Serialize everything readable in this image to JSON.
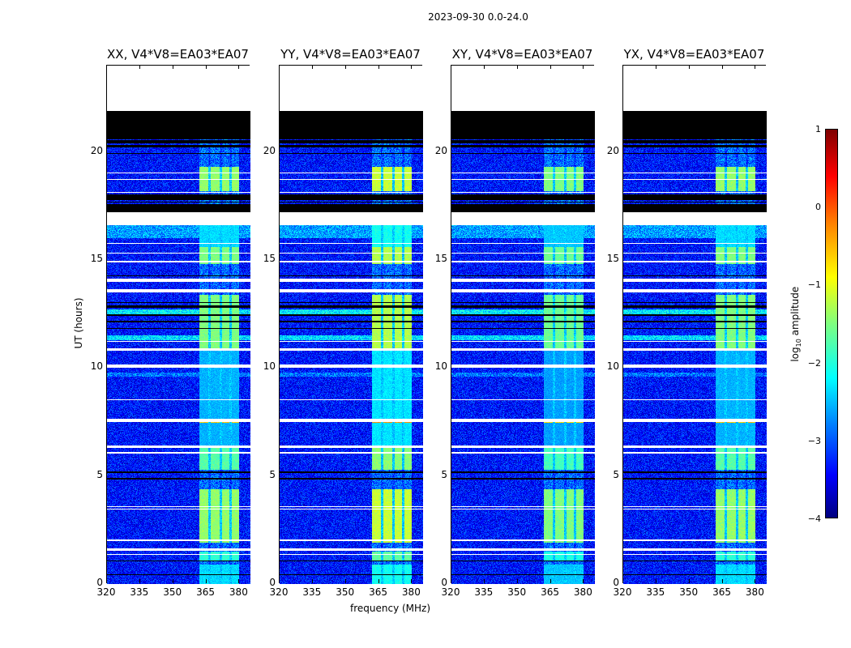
{
  "chart_data": {
    "type": "heatmap",
    "suptitle": "2023-09-30 0.0-24.0",
    "xlabel": "frequency (MHz)",
    "ylabel": "UT (hours)",
    "xlim": [
      320,
      385
    ],
    "ylim": [
      0,
      24
    ],
    "xticks": [
      "320",
      "335",
      "350",
      "365",
      "380"
    ],
    "xtick_values": [
      320,
      335,
      350,
      365,
      380
    ],
    "yticks": [
      "0",
      "5",
      "10",
      "15",
      "20"
    ],
    "ytick_values": [
      0,
      5,
      10,
      15,
      20
    ],
    "panels": [
      {
        "title": "XX, V4*V8=EA03*EA07",
        "gain": 0
      },
      {
        "title": "YY, V4*V8=EA03*EA07",
        "gain": 0.25
      },
      {
        "title": "XY, V4*V8=EA03*EA07",
        "gain": -0.1
      },
      {
        "title": "YX, V4*V8=EA03*EA07",
        "gain": 0
      }
    ],
    "colorbar": {
      "label_main": "log",
      "label_sub": "10",
      "label_rest": " amplitude",
      "range": [
        -4,
        1
      ],
      "ticks": [
        "1",
        "0",
        "−1",
        "−2",
        "−3",
        "−4"
      ],
      "tick_values": [
        1,
        0,
        -1,
        -2,
        -3,
        -4
      ],
      "colormap": "jet"
    },
    "background_level": -3.3,
    "no_data_hours": [
      [
        21.9,
        24
      ]
    ],
    "flagged_black_hours": [
      [
        20.6,
        21.9
      ],
      [
        17.2,
        17.6
      ],
      [
        17.8,
        18.0
      ],
      [
        20.2,
        20.3
      ],
      [
        19.9,
        19.95
      ],
      [
        12.1,
        12.2
      ],
      [
        12.4,
        12.5
      ],
      [
        12.8,
        12.9
      ],
      [
        11.8,
        11.85
      ],
      [
        5.15,
        5.2
      ],
      [
        4.85,
        4.9
      ],
      [
        1.05,
        1.1
      ],
      [
        0.4,
        0.45
      ],
      [
        14.25,
        14.3
      ],
      [
        13.0,
        13.05
      ]
    ],
    "flagged_white_hours": [
      [
        16.6,
        17.2
      ],
      [
        19.0,
        19.05
      ],
      [
        18.7,
        18.75
      ],
      [
        18.1,
        18.15
      ],
      [
        15.75,
        15.8
      ],
      [
        15.3,
        15.35
      ],
      [
        14.9,
        14.95
      ],
      [
        14.0,
        14.15
      ],
      [
        13.5,
        13.65
      ],
      [
        10.8,
        10.9
      ],
      [
        10.0,
        10.15
      ],
      [
        8.5,
        8.55
      ],
      [
        7.5,
        7.65
      ],
      [
        6.3,
        6.4
      ],
      [
        6.05,
        6.1
      ],
      [
        3.55,
        3.6
      ],
      [
        3.45,
        3.5
      ],
      [
        2.0,
        2.05
      ],
      [
        1.55,
        1.65
      ],
      [
        1.35,
        1.4
      ],
      [
        11.2,
        11.25
      ]
    ],
    "bright_bands_hours": [
      [
        18.2,
        19.3,
        -1.4
      ],
      [
        14.8,
        15.6,
        -1.5
      ],
      [
        10.8,
        13.4,
        -1.5
      ],
      [
        12.6,
        12.75,
        -0.8
      ],
      [
        7.45,
        7.6,
        -0.6
      ],
      [
        5.3,
        6.3,
        -1.7
      ],
      [
        1.9,
        4.4,
        -1.4
      ],
      [
        1.1,
        1.5,
        -1.9
      ],
      [
        0,
        0.9,
        -2.3
      ],
      [
        6.4,
        10.8,
        -2.5
      ],
      [
        15.6,
        16.6,
        -2.3
      ]
    ],
    "rfi_channels_mhz": [
      [
        362,
        366
      ],
      [
        367,
        371
      ],
      [
        372,
        375.5
      ],
      [
        376.5,
        380
      ]
    ],
    "elevated_rows_hours": [
      [
        16.0,
        16.6,
        -2.6
      ],
      [
        12.5,
        12.7,
        -2.2
      ],
      [
        11.3,
        11.5,
        -2.3
      ],
      [
        9.6,
        9.8,
        -2.8
      ]
    ]
  }
}
